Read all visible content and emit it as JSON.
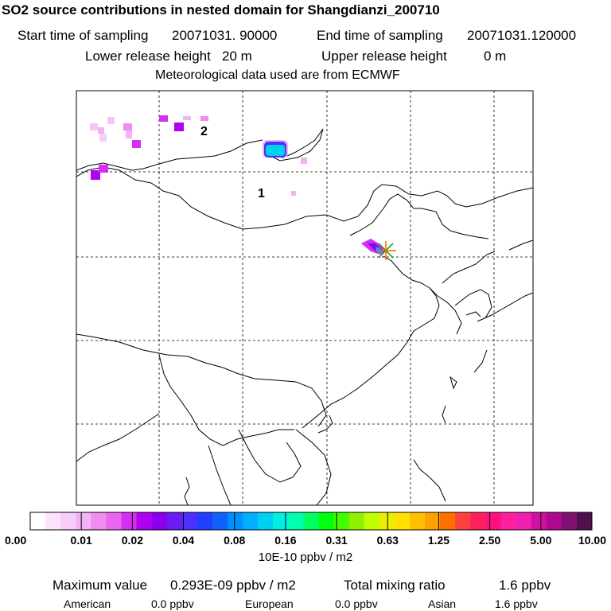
{
  "header": {
    "title": "SO2 source contributions in nested domain for Shangdianzi_200710",
    "start_label": "Start time of sampling",
    "start_value": "20071031. 90000",
    "end_label": "End time of sampling",
    "end_value": "20071031.120000",
    "lower_label": "Lower release height",
    "lower_value": "20 m",
    "upper_label": "Upper release height",
    "upper_value": "0 m",
    "met": "Meteorological data used are from ECMWF"
  },
  "map": {
    "region_labels": [
      "1",
      "2"
    ],
    "station": "Shangdianzi"
  },
  "legend": {
    "ticks": [
      "0.00",
      "0.01",
      "0.02",
      "0.04",
      "0.08",
      "0.16",
      "0.31",
      "0.63",
      "1.25",
      "2.50",
      "5.00",
      "10.00"
    ],
    "units": "10E-10 ppbv / m2",
    "colors": [
      "#ffffff",
      "#fbe3fb",
      "#f8cdf8",
      "#f4b2f4",
      "#ef8cef",
      "#ea66f2",
      "#d42ef2",
      "#b000f0",
      "#8a00ee",
      "#6a1cf2",
      "#4b30ff",
      "#2040ff",
      "#1060ff",
      "#0090ff",
      "#00b0ff",
      "#00d0f0",
      "#00f0e0",
      "#00ffb0",
      "#00ff60",
      "#00ff10",
      "#40ff00",
      "#90f000",
      "#c0ff00",
      "#e8f000",
      "#ffe000",
      "#ffc000",
      "#ffa000",
      "#ff7000",
      "#ff4040",
      "#ff2060",
      "#ff1080",
      "#ff20a0",
      "#f020b0",
      "#d010a0",
      "#b00890",
      "#801070",
      "#501050"
    ]
  },
  "stats": {
    "max_label": "Maximum value",
    "max_value": "0.293E-09 ppbv / m2",
    "total_label": "Total mixing ratio",
    "total_value": "1.6 ppbv",
    "american_label": "American",
    "american_value": "0.0 ppbv",
    "european_label": "European",
    "european_value": "0.0 ppbv",
    "asian_label": "Asian",
    "asian_value": "1.6 ppbv"
  }
}
